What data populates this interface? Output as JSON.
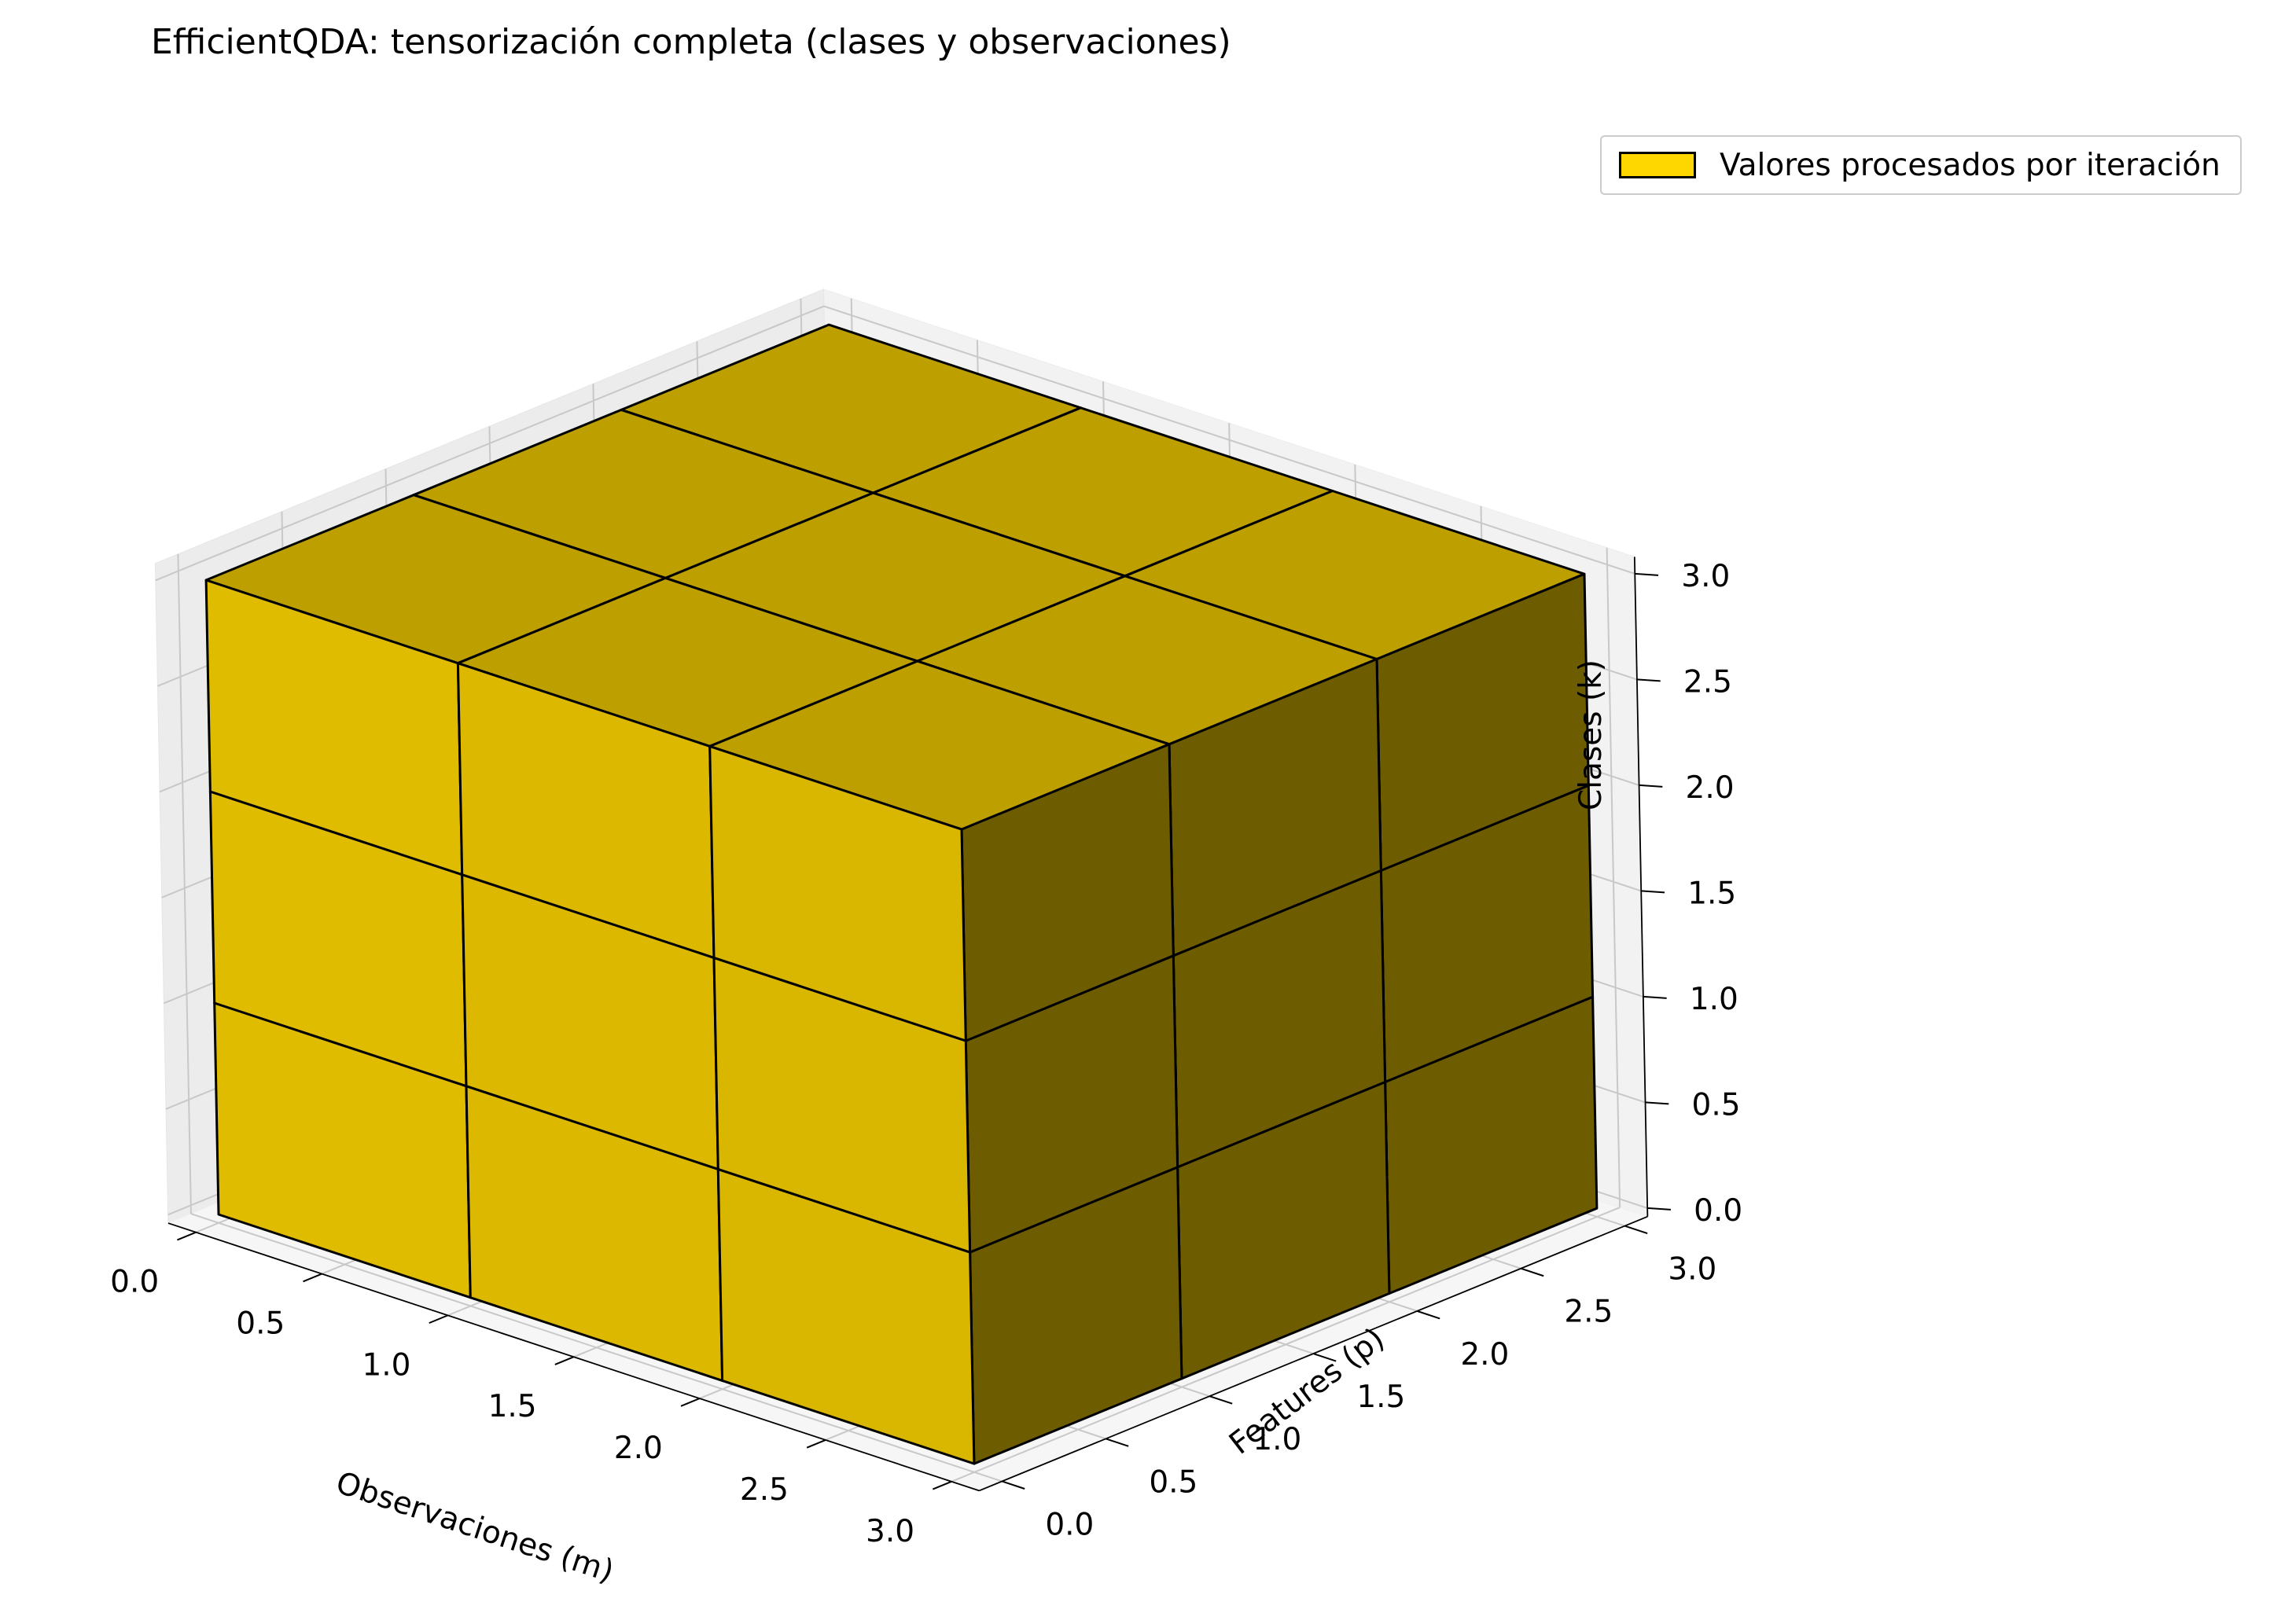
{
  "chart_data": {
    "type": "3d-voxel",
    "title": "EfficientQDA: tensorización completa (clases y observaciones)",
    "xlabel": "Observaciones (m)",
    "ylabel": "Features (p)",
    "zlabel": "Clases (k)",
    "xlim": [
      0,
      3
    ],
    "ylim": [
      0,
      3
    ],
    "zlim": [
      0,
      3
    ],
    "x_ticks": [
      "0.0",
      "0.5",
      "1.0",
      "1.5",
      "2.0",
      "2.5",
      "3.0"
    ],
    "y_ticks": [
      "0.0",
      "0.5",
      "1.0",
      "1.5",
      "2.0",
      "2.5",
      "3.0"
    ],
    "z_ticks": [
      "0.0",
      "0.5",
      "1.0",
      "1.5",
      "2.0",
      "2.5",
      "3.0"
    ],
    "grid": true,
    "voxels": {
      "filled": [
        3,
        3,
        3
      ],
      "color": "#FFD700",
      "edgecolor": "#000000",
      "alpha": 0.9
    },
    "legend": {
      "placement": "upper right, outside plot",
      "entries": [
        "Valores procesados por iteración"
      ]
    }
  }
}
